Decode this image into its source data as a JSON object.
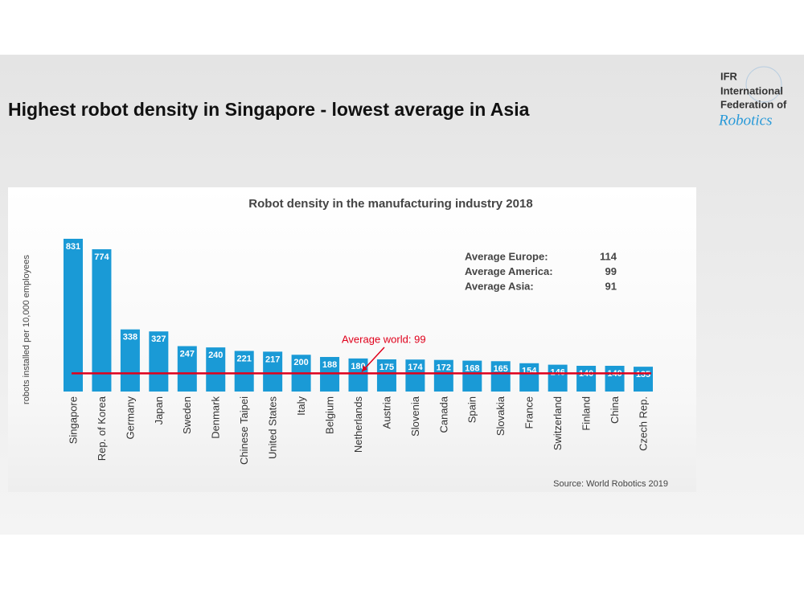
{
  "slide_title": "Highest robot density in Singapore - lowest average in Asia",
  "logo": {
    "line1": "IFR",
    "line2": "International",
    "line3": "Federation of",
    "line4": "Robotics"
  },
  "chart_data": {
    "type": "bar",
    "title": "Robot density in the manufacturing industry 2018",
    "y_label": "robots installed per 10,000 employees",
    "categories": [
      "Singapore",
      "Rep. of Korea",
      "Germany",
      "Japan",
      "Sweden",
      "Denmark",
      "Chinese Taipei",
      "United States",
      "Italy",
      "Belgium",
      "Netherlands",
      "Austria",
      "Slovenia",
      "Canada",
      "Spain",
      "Slovakia",
      "France",
      "Switzerland",
      "Finland",
      "China",
      "Czech Rep."
    ],
    "values": [
      831,
      774,
      338,
      327,
      247,
      240,
      221,
      217,
      200,
      188,
      180,
      175,
      174,
      172,
      168,
      165,
      154,
      146,
      140,
      140,
      135
    ],
    "color": "#1a9ad6",
    "averages": [
      {
        "label": "Average Europe:",
        "value": 114
      },
      {
        "label": "Average America:",
        "value": 99
      },
      {
        "label": "Average Asia:",
        "value": 91
      }
    ],
    "average_world": {
      "label": "Average world: 99",
      "value": 99,
      "color": "#e0001b"
    },
    "source": "Source: World Robotics 2019"
  }
}
